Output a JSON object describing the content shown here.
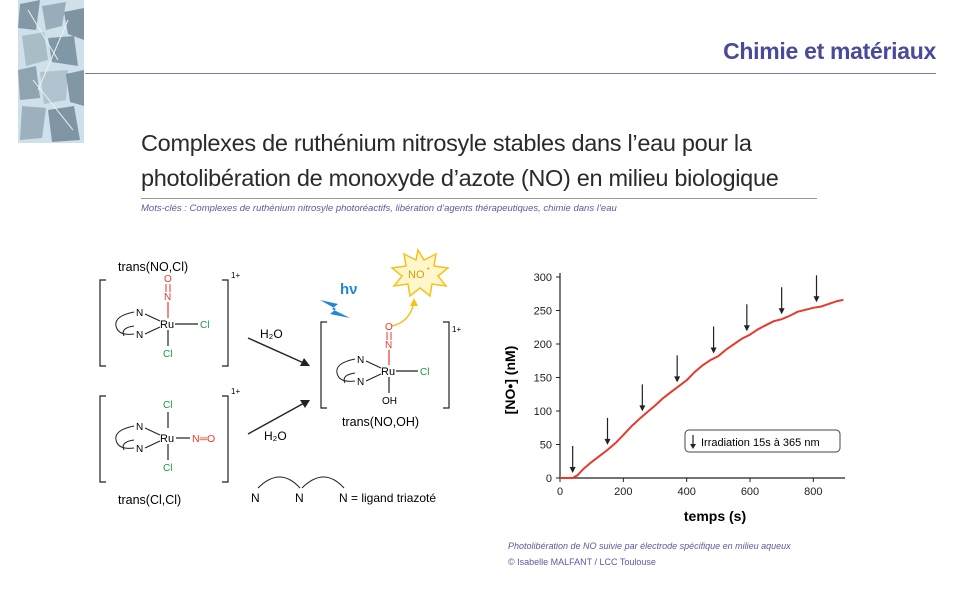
{
  "header": {
    "section_title": "Chimie et matériaux"
  },
  "article": {
    "title_line1": "Complexes de ruthénium nitrosyle stables dans l’eau pour la",
    "title_line2": "photolibération de monoxyde d’azote (NO) en milieu biologique",
    "keywords": "Mots-clés : Complexes de ruthénium nitrosyle photoréactifs, libération d’agents thérapeutiques, chimie dans l’eau"
  },
  "scheme": {
    "label_top": "trans(NO,Cl)",
    "label_bottom": "trans(Cl,Cl)",
    "label_product": "trans(NO,OH)",
    "charge": "1+",
    "water_top": "H₂O",
    "water_bottom": "H₂O",
    "light": "hν",
    "no_release": "NO",
    "no_sup": "•",
    "ru": "Ru",
    "n": "N",
    "cl": "Cl",
    "o": "O",
    "oh": "OH",
    "no_group": "N═O",
    "ligand_legend": "N = ligand triazoté",
    "colors": {
      "oxygen": "#e8392a",
      "nitrogen": "#e8392a",
      "chlorine": "#1a9a3c",
      "light": "#1e88d6",
      "burst": "#f5c21b"
    }
  },
  "chart_data": {
    "type": "line",
    "xlabel": "temps (s)",
    "ylabel": "[NO•] (nM)",
    "xlim": [
      0,
      900
    ],
    "ylim": [
      0,
      300
    ],
    "xticks": [
      0,
      200,
      400,
      600,
      800
    ],
    "yticks": [
      0,
      50,
      100,
      150,
      200,
      250,
      300
    ],
    "grid": false,
    "legend_text": "Irradiation 15s à 365 nm",
    "series": [
      {
        "color": "#e8392a",
        "x": [
          0,
          40,
          55,
          75,
          100,
          125,
          150,
          175,
          200,
          225,
          255,
          275,
          300,
          325,
          350,
          375,
          400,
          425,
          450,
          475,
          500,
          525,
          550,
          575,
          600,
          625,
          650,
          675,
          700,
          725,
          750,
          775,
          800,
          825,
          850,
          875,
          895
        ],
        "y": [
          0,
          0,
          4,
          14,
          24,
          33,
          42,
          52,
          64,
          77,
          90,
          98,
          108,
          119,
          128,
          137,
          146,
          158,
          168,
          176,
          182,
          192,
          200,
          208,
          214,
          222,
          228,
          234,
          237,
          242,
          248,
          251,
          254,
          256,
          260,
          264,
          266
        ]
      }
    ],
    "irradiation_times": [
      40,
      150,
      260,
      370,
      485,
      590,
      700,
      810
    ]
  },
  "captions": {
    "figure": "Photolibération de NO suivie par électrode spécifique en milieu aqueux",
    "credit": "© Isabelle MALFANT / LCC Toulouse"
  }
}
